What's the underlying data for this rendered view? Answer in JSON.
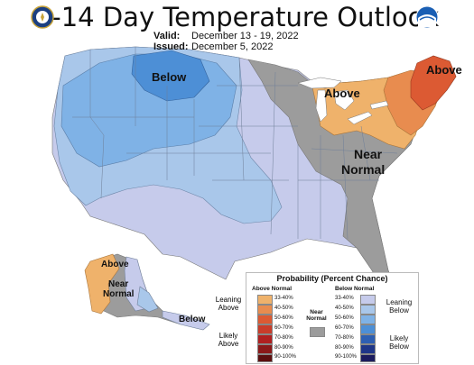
{
  "header": {
    "title": "8-14 Day Temperature Outlook",
    "valid_label": "Valid:",
    "valid_value": "December 13 - 19, 2022",
    "issued_label": "Issued:",
    "issued_value": "December 5, 2022",
    "left_logo": "doc-seal-icon",
    "right_logo": "noaa-logo-icon"
  },
  "map_labels": {
    "below_west": "Below",
    "above_great_lakes": "Above",
    "above_northeast": "Above",
    "near_normal_southeast": [
      "Near",
      "Normal"
    ],
    "alaska_above": "Above",
    "alaska_near_normal": [
      "Near",
      "Normal"
    ],
    "alaska_below": "Below"
  },
  "colors": {
    "near_normal": "#9c9c9c",
    "below_33_40": "#c6cbeb",
    "below_40_50": "#a9c7ea",
    "below_50_60": "#7fb2e6",
    "below_60_70": "#4d8fd6",
    "below_70_80": "#2e5fb2",
    "below_80_90": "#1f3688",
    "below_90_100": "#1c1c5e",
    "above_33_40": "#efb26b",
    "above_40_50": "#e88c4f",
    "above_50_60": "#dc5a33",
    "above_60_70": "#c93c2a",
    "above_70_80": "#b02020",
    "above_80_90": "#8b1919",
    "above_90_100": "#5c0f0f"
  },
  "legend": {
    "title": "Probability (Percent Chance)",
    "above_header": "Above Normal",
    "below_header": "Below Normal",
    "ranges": [
      "33-40%",
      "40-50%",
      "50-60%",
      "60-70%",
      "70-80%",
      "80-90%",
      "90-100%"
    ],
    "near_normal_label": [
      "Near",
      "Normal"
    ],
    "leaning_above": [
      "Leaning",
      "Above"
    ],
    "likely_above": [
      "Likely",
      "Above"
    ],
    "leaning_below": [
      "Leaning",
      "Below"
    ],
    "likely_below": [
      "Likely",
      "Below"
    ]
  }
}
